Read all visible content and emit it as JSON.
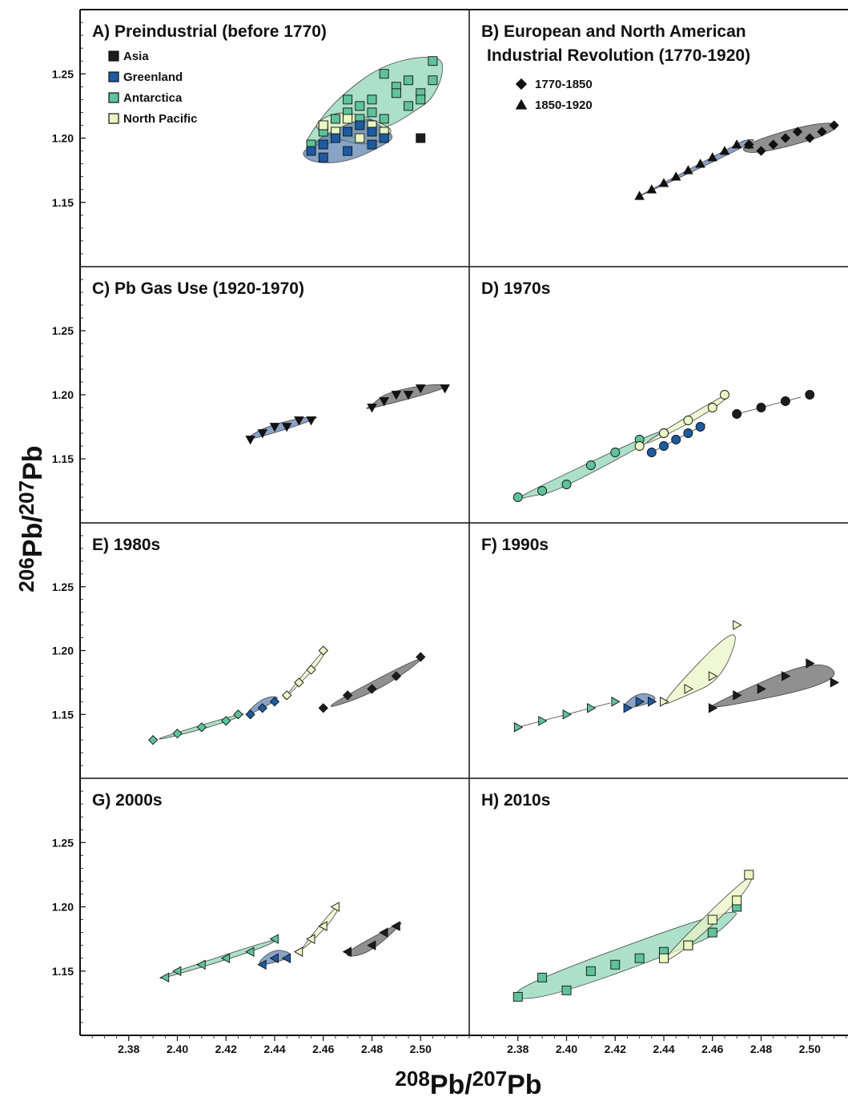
{
  "chart_data": {
    "type": "scatter",
    "xlabel": "208Pb/207Pb",
    "ylabel": "206Pb/207Pb",
    "xlabel_parts": {
      "sup1": "208",
      "main1": "Pb/",
      "sup2": "207",
      "main2": "Pb"
    },
    "ylabel_parts": {
      "sup1": "206",
      "main1": "Pb/",
      "sup2": "207",
      "main2": "Pb"
    },
    "xlim": [
      2.36,
      2.52
    ],
    "ylim": [
      1.1,
      1.3
    ],
    "x_ticks": [
      "2.38",
      "2.40",
      "2.42",
      "2.44",
      "2.46",
      "2.48",
      "2.50"
    ],
    "y_ticks": [
      "1.15",
      "1.20",
      "1.25"
    ],
    "colors": {
      "Asia": "#1c1c1c",
      "Greenland": "#1f5aa0",
      "Antarctica": "#5fc29a",
      "North Pacific": "#eaf6c4"
    },
    "hull_fill": {
      "Asia": "#555555",
      "Greenland": "#4a72a8",
      "Antarctica": "#7fcfaa",
      "North Pacific": "#e9f4c7"
    },
    "legend_regions": [
      "Asia",
      "Greenland",
      "Antarctica",
      "North Pacific"
    ],
    "legend_markers": [
      {
        "marker": "diamond",
        "label": "1770-1850"
      },
      {
        "marker": "triangle",
        "label": "1850-1920"
      }
    ],
    "panels": [
      {
        "title": "A) Preindustrial (before 1770)",
        "marker": "square",
        "regions": {
          "Antarctica": {
            "x": [
              2.455,
              2.46,
              2.465,
              2.47,
              2.475,
              2.48,
              2.485,
              2.49,
              2.495,
              2.5,
              2.505,
              2.505,
              2.5,
              2.495,
              2.49,
              2.485,
              2.48,
              2.475,
              2.47,
              2.46
            ],
            "y": [
              1.195,
              1.205,
              1.215,
              1.23,
              1.225,
              1.22,
              1.215,
              1.24,
              1.245,
              1.235,
              1.26,
              1.245,
              1.23,
              1.225,
              1.235,
              1.25,
              1.23,
              1.215,
              1.22,
              1.21
            ]
          },
          "North Pacific": {
            "x": [
              2.46,
              2.465,
              2.47,
              2.475,
              2.48,
              2.485
            ],
            "y": [
              1.21,
              1.205,
              1.215,
              1.2,
              1.21,
              1.205
            ]
          },
          "Greenland": {
            "x": [
              2.455,
              2.46,
              2.465,
              2.47,
              2.475,
              2.48,
              2.485,
              2.46,
              2.47,
              2.48
            ],
            "y": [
              1.19,
              1.195,
              1.2,
              1.205,
              1.21,
              1.205,
              1.2,
              1.185,
              1.19,
              1.195
            ]
          },
          "Asia": {
            "x": [
              2.5
            ],
            "y": [
              1.2
            ]
          }
        }
      },
      {
        "title": "B) European and North American",
        "title2": "Industrial Revolution (1770-1920)",
        "marker": "mixed",
        "regions": {
          "Greenland": {
            "x": [
              2.43,
              2.435,
              2.44,
              2.445,
              2.45,
              2.455,
              2.46,
              2.465,
              2.47,
              2.475
            ],
            "y": [
              1.155,
              1.16,
              1.165,
              1.17,
              1.175,
              1.18,
              1.185,
              1.19,
              1.195,
              1.195
            ]
          },
          "Asia": {
            "x": [
              2.475,
              2.48,
              2.485,
              2.49,
              2.495,
              2.5,
              2.505,
              2.51
            ],
            "y": [
              1.195,
              1.19,
              1.195,
              1.2,
              1.205,
              1.2,
              1.205,
              1.21
            ]
          }
        }
      },
      {
        "title": "C) Pb Gas Use (1920-1970)",
        "marker": "triangle-down",
        "regions": {
          "Greenland": {
            "x": [
              2.43,
              2.435,
              2.44,
              2.445,
              2.45,
              2.455
            ],
            "y": [
              1.165,
              1.17,
              1.175,
              1.175,
              1.18,
              1.18
            ]
          },
          "Asia": {
            "x": [
              2.48,
              2.485,
              2.49,
              2.495,
              2.5,
              2.51
            ],
            "y": [
              1.19,
              1.195,
              1.2,
              1.2,
              1.205,
              1.205
            ]
          }
        }
      },
      {
        "title": "D) 1970s",
        "marker": "circle",
        "regions": {
          "Antarctica": {
            "x": [
              2.38,
              2.39,
              2.4,
              2.41,
              2.42,
              2.43,
              2.44
            ],
            "y": [
              1.12,
              1.125,
              1.13,
              1.145,
              1.155,
              1.165,
              1.17
            ]
          },
          "North Pacific": {
            "x": [
              2.43,
              2.44,
              2.45,
              2.46,
              2.465
            ],
            "y": [
              1.16,
              1.17,
              1.18,
              1.19,
              1.2
            ]
          },
          "Greenland": {
            "x": [
              2.435,
              2.44,
              2.445,
              2.45,
              2.455
            ],
            "y": [
              1.155,
              1.16,
              1.165,
              1.17,
              1.175
            ]
          },
          "Asia": {
            "x": [
              2.47,
              2.48,
              2.49,
              2.5
            ],
            "y": [
              1.185,
              1.19,
              1.195,
              1.2
            ]
          }
        }
      },
      {
        "title": "E) 1980s",
        "marker": "diamond",
        "regions": {
          "Antarctica": {
            "x": [
              2.39,
              2.4,
              2.41,
              2.42,
              2.425
            ],
            "y": [
              1.13,
              1.135,
              1.14,
              1.145,
              1.15
            ]
          },
          "Greenland": {
            "x": [
              2.43,
              2.435,
              2.44
            ],
            "y": [
              1.15,
              1.155,
              1.16
            ]
          },
          "North Pacific": {
            "x": [
              2.445,
              2.45,
              2.455,
              2.46
            ],
            "y": [
              1.165,
              1.175,
              1.185,
              1.2
            ]
          },
          "Asia": {
            "x": [
              2.46,
              2.47,
              2.48,
              2.49,
              2.5
            ],
            "y": [
              1.155,
              1.165,
              1.17,
              1.18,
              1.195
            ]
          }
        }
      },
      {
        "title": "F) 1990s",
        "marker": "triangle-right",
        "regions": {
          "Antarctica": {
            "x": [
              2.38,
              2.39,
              2.4,
              2.41,
              2.42
            ],
            "y": [
              1.14,
              1.145,
              1.15,
              1.155,
              1.16
            ]
          },
          "Greenland": {
            "x": [
              2.425,
              2.43,
              2.435
            ],
            "y": [
              1.155,
              1.16,
              1.16
            ]
          },
          "North Pacific": {
            "x": [
              2.44,
              2.45,
              2.46,
              2.47
            ],
            "y": [
              1.16,
              1.17,
              1.18,
              1.22
            ]
          },
          "Asia": {
            "x": [
              2.46,
              2.47,
              2.48,
              2.49,
              2.5,
              2.51
            ],
            "y": [
              1.155,
              1.165,
              1.17,
              1.18,
              1.19,
              1.175
            ]
          }
        }
      },
      {
        "title": "G) 2000s",
        "marker": "triangle-left",
        "regions": {
          "Antarctica": {
            "x": [
              2.395,
              2.4,
              2.41,
              2.42,
              2.43,
              2.44
            ],
            "y": [
              1.145,
              1.15,
              1.155,
              1.16,
              1.165,
              1.175
            ]
          },
          "Greenland": {
            "x": [
              2.435,
              2.44,
              2.445
            ],
            "y": [
              1.155,
              1.16,
              1.16
            ]
          },
          "North Pacific": {
            "x": [
              2.45,
              2.455,
              2.46,
              2.465
            ],
            "y": [
              1.165,
              1.175,
              1.185,
              1.2
            ]
          },
          "Asia": {
            "x": [
              2.47,
              2.48,
              2.485,
              2.49
            ],
            "y": [
              1.165,
              1.17,
              1.18,
              1.185
            ]
          }
        }
      },
      {
        "title": "H) 2010s",
        "marker": "square",
        "regions": {
          "Antarctica": {
            "x": [
              2.38,
              2.39,
              2.4,
              2.41,
              2.42,
              2.43,
              2.44,
              2.45,
              2.46,
              2.47
            ],
            "y": [
              1.13,
              1.145,
              1.135,
              1.15,
              1.155,
              1.16,
              1.165,
              1.17,
              1.18,
              1.2
            ]
          },
          "North Pacific": {
            "x": [
              2.44,
              2.45,
              2.46,
              2.47,
              2.475
            ],
            "y": [
              1.16,
              1.17,
              1.19,
              1.205,
              1.225
            ]
          }
        }
      }
    ]
  }
}
